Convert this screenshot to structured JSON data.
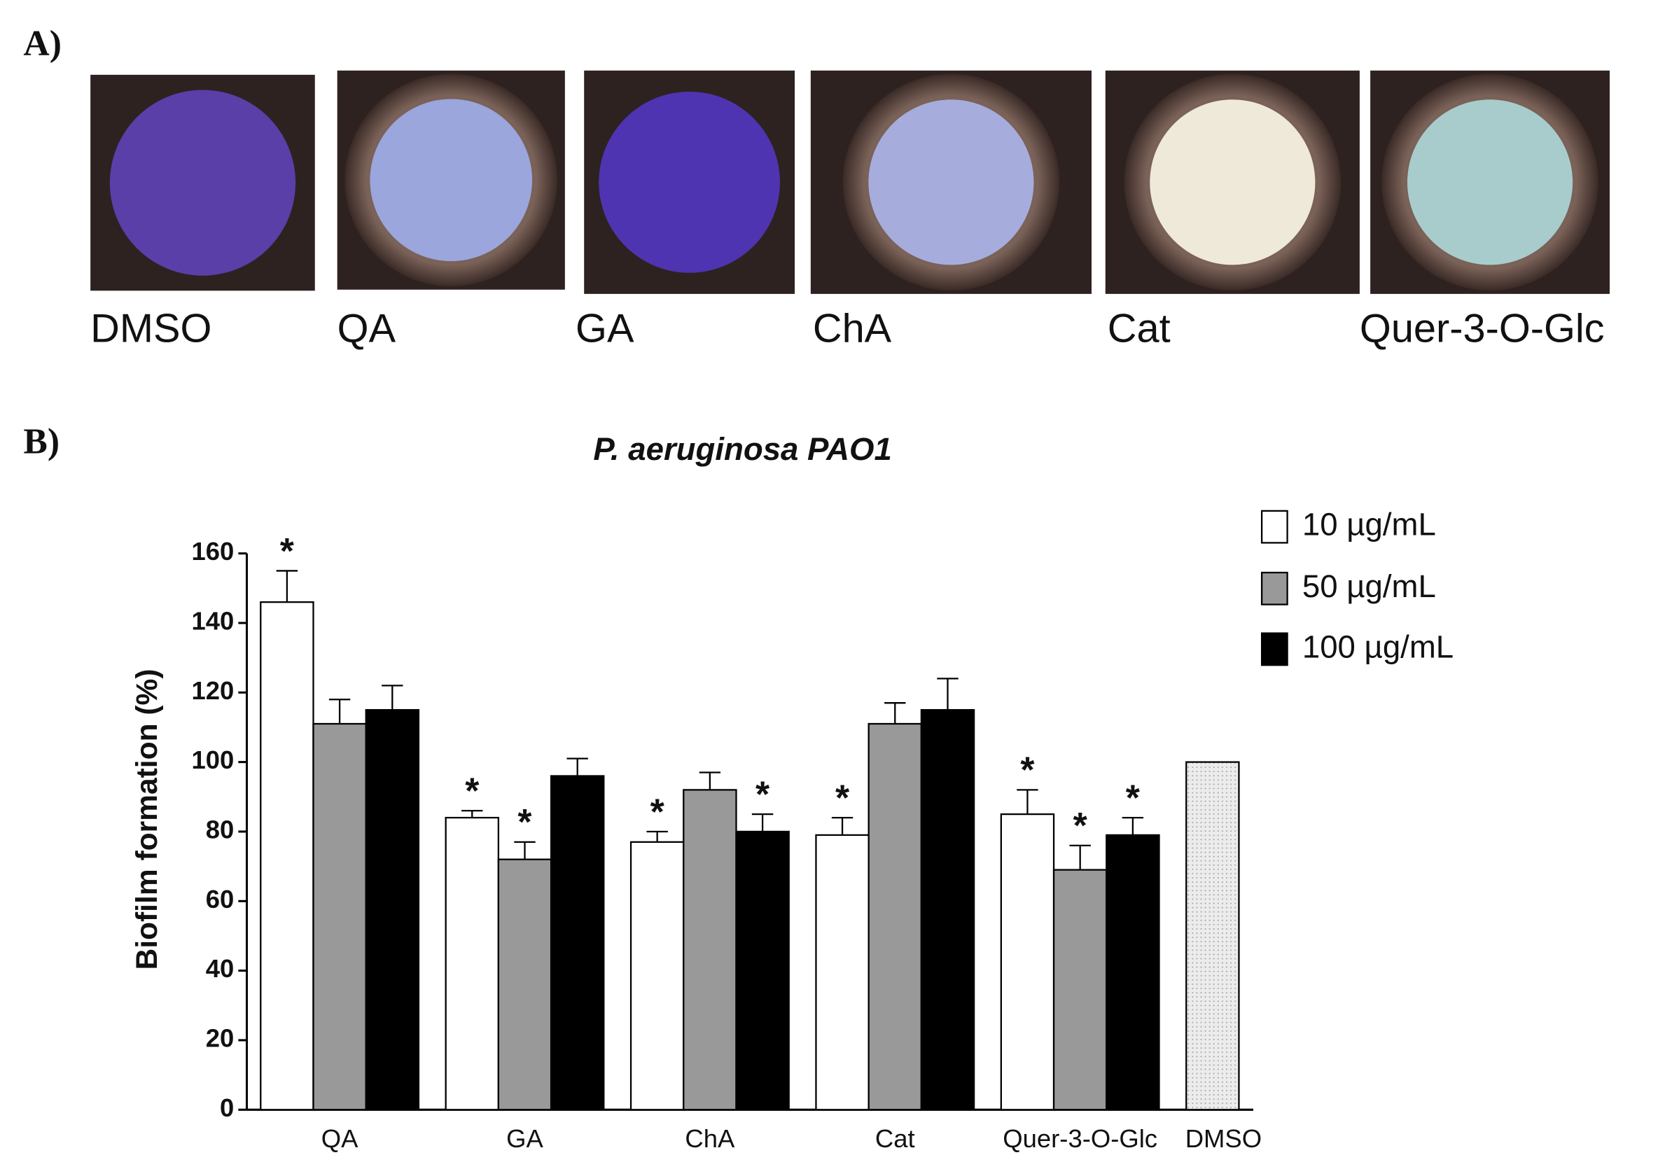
{
  "panel_a": {
    "label": "A)",
    "wells": [
      "DMSO",
      "QA",
      "GA",
      "ChA",
      "Cat",
      "Quer-3-O-Glc"
    ]
  },
  "chart_data": {
    "type": "bar",
    "panel_label": "B)",
    "title": "P. aeruginosa PAO1",
    "y_label": "Biofilm formation (%)",
    "categories": [
      "QA",
      "GA",
      "ChA",
      "Cat",
      "Quer-3-O-Glc",
      "DMSO"
    ],
    "ylim": [
      0,
      160
    ],
    "yticks": [
      0,
      20,
      40,
      60,
      80,
      100,
      120,
      140,
      160
    ],
    "legend_position": "upper right",
    "series": [
      {
        "name": "10 µg/mL",
        "color": "#ffffff",
        "values": [
          146,
          84,
          77,
          79,
          85,
          null
        ],
        "errors": [
          9,
          2,
          3,
          5,
          7,
          null
        ],
        "labels": [
          "*",
          "*",
          "*",
          "*",
          "*",
          null
        ]
      },
      {
        "name": "50 µg/mL",
        "color": "#999999",
        "values": [
          111,
          72,
          92,
          111,
          69,
          null
        ],
        "errors": [
          7,
          5,
          5,
          6,
          7,
          null
        ],
        "labels": [
          null,
          "*",
          null,
          null,
          "*",
          null
        ]
      },
      {
        "name": "100 µg/mL",
        "color": "#000000",
        "values": [
          115,
          96,
          80,
          115,
          79,
          null
        ],
        "errors": [
          7,
          5,
          5,
          9,
          5,
          null
        ],
        "labels": [
          null,
          null,
          "*",
          null,
          "*",
          null
        ]
      },
      {
        "color": "#e6e6e6",
        "pattern": "dots",
        "values": [
          null,
          null,
          null,
          null,
          null,
          100
        ],
        "errors": [
          null,
          null,
          null,
          null,
          null,
          null
        ],
        "labels": [
          null,
          null,
          null,
          null,
          null,
          null
        ]
      }
    ]
  }
}
